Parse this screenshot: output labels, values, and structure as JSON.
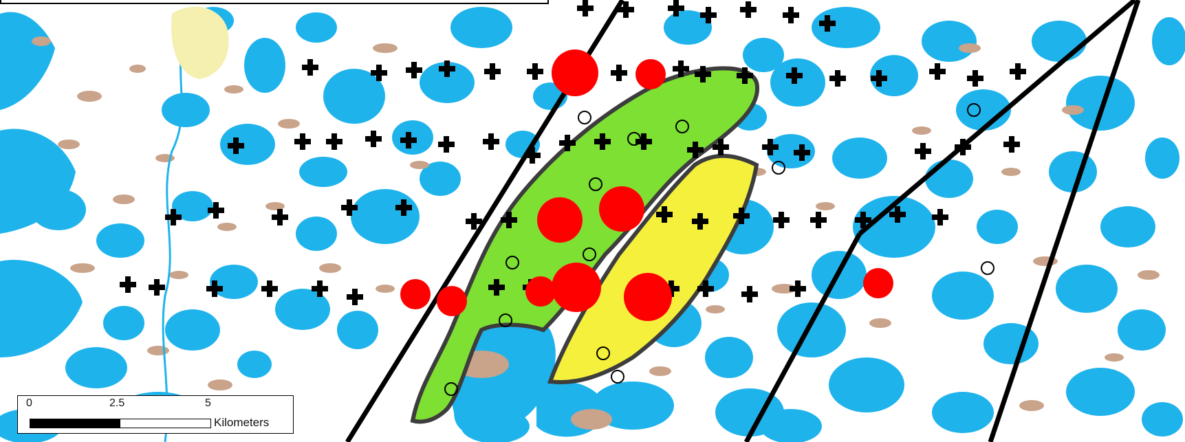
{
  "map": {
    "colors": {
      "water": "#1fb3ec",
      "land": "#ffffff",
      "soil": "#c9a38a",
      "green_zone": "#7ee033",
      "yellow_zone": "#f5f03c",
      "outline": "#3d3d3d",
      "transect": "#000000",
      "large_marker": "#ff0000",
      "sample_point": "#000000"
    },
    "symbols": [
      "plus-icon",
      "red-circle-icon",
      "open-circle-icon"
    ]
  },
  "scale_bar": {
    "ticks": [
      "0",
      "2.5",
      "5"
    ],
    "unit": "Kilometers"
  }
}
